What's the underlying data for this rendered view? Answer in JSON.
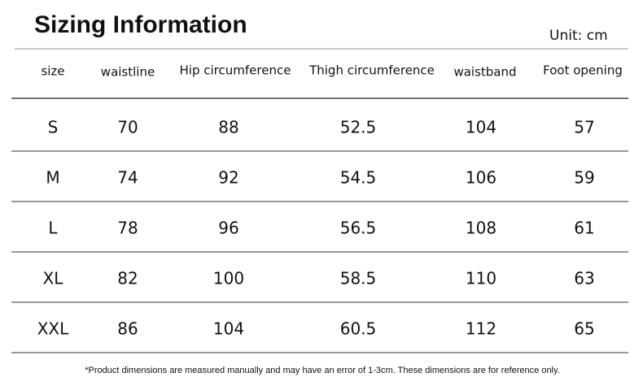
{
  "header": {
    "title": "Sizing Information",
    "unit": "Unit: cm"
  },
  "table": {
    "columns": [
      "size",
      "waistline",
      "Hip circumference",
      "Thigh circumference",
      "waistband",
      "Foot opening"
    ],
    "rows": [
      [
        "S",
        70,
        88,
        52.5,
        104,
        57
      ],
      [
        "M",
        74,
        92,
        54.5,
        106,
        59
      ],
      [
        "L",
        78,
        96,
        56.5,
        108,
        61
      ],
      [
        "XL",
        82,
        100,
        58.5,
        110,
        63
      ],
      [
        "XXL",
        86,
        104,
        60.5,
        112,
        65
      ]
    ]
  },
  "footnote": "*Product dimensions are measured manually and may have an error of 1-3cm. These dimensions are for reference only."
}
